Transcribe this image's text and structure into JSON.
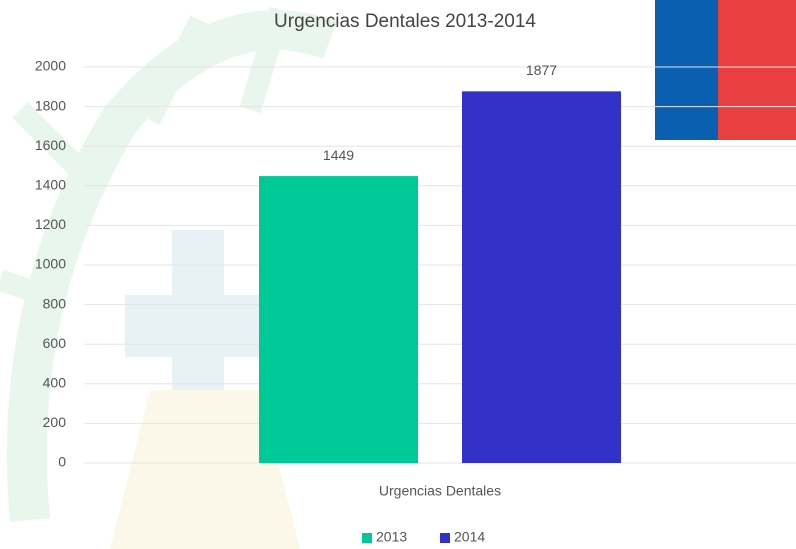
{
  "chart_data": {
    "type": "bar",
    "title": "Urgencias Dentales  2013-2014",
    "categories": [
      "Urgencias Dentales"
    ],
    "series": [
      {
        "name": "2013",
        "color": "#00c896",
        "values": [
          1449
        ]
      },
      {
        "name": "2014",
        "color": "#3232c8",
        "values": [
          1877
        ]
      }
    ],
    "ylim": [
      0,
      2000
    ],
    "yticks": [
      0,
      200,
      400,
      600,
      800,
      1000,
      1200,
      1400,
      1600,
      1800,
      2000
    ],
    "grid": true,
    "legend": "bottom",
    "data_labels": true
  }
}
